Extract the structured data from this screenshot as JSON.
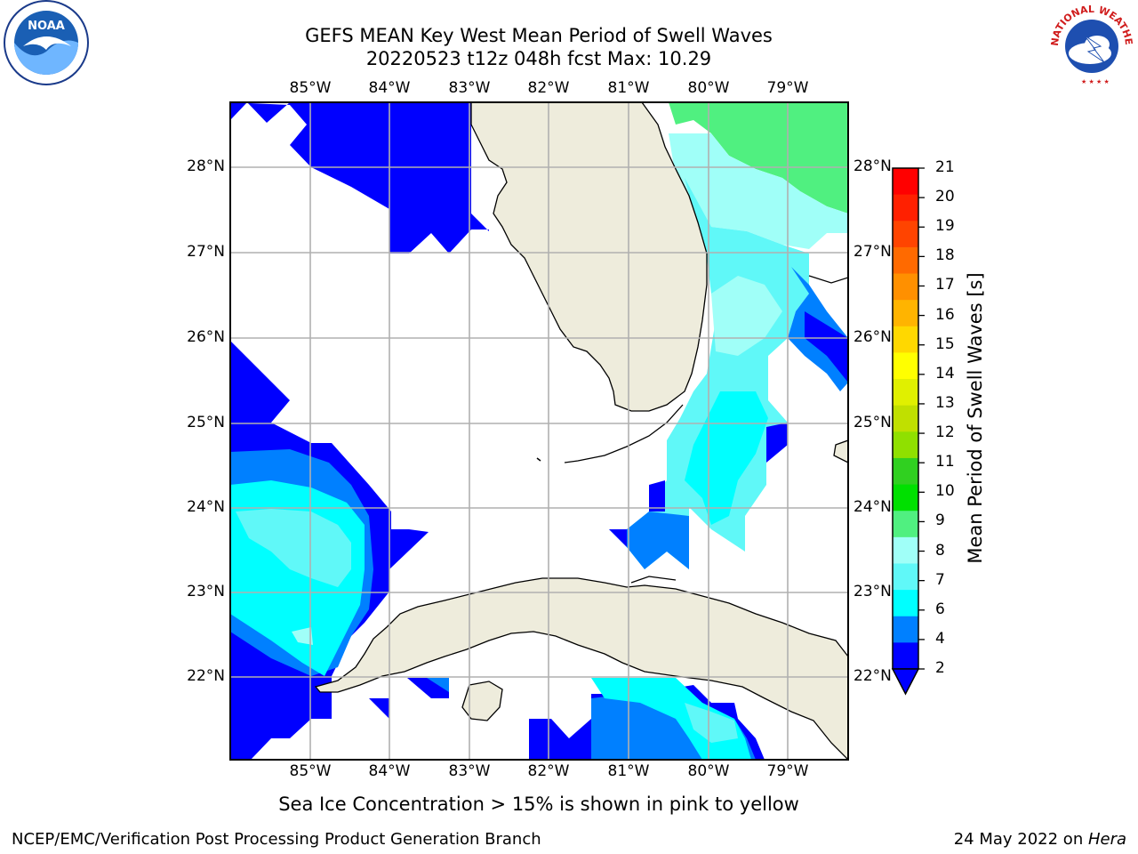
{
  "title_line1": "GEFS MEAN Key West Mean Period of Swell Waves",
  "title_line2": "20220523 t12z 048h fcst   Max: 10.29",
  "lon_labels": [
    "85°W",
    "84°W",
    "83°W",
    "82°W",
    "81°W",
    "80°W",
    "79°W"
  ],
  "lat_labels": [
    "28°N",
    "27°N",
    "26°N",
    "25°N",
    "24°N",
    "23°N",
    "22°N"
  ],
  "colorbar": {
    "label": "Mean Period of Swell Waves [s]",
    "ticks": [
      "21",
      "20",
      "19",
      "18",
      "17",
      "16",
      "15",
      "14",
      "13",
      "12",
      "11",
      "10",
      "9",
      "8",
      "7",
      "6",
      "4",
      "2"
    ],
    "colors": [
      "#ff0000",
      "#ff2000",
      "#ff4400",
      "#ff6a00",
      "#ff9000",
      "#ffb400",
      "#ffd800",
      "#ffff00",
      "#e0f000",
      "#c0e000",
      "#90e000",
      "#30d020",
      "#00e000",
      "#50f080",
      "#a0fff8",
      "#60f8f8",
      "#00ffff",
      "#0080ff",
      "#0000ff"
    ]
  },
  "legend_palette": {
    "blue": "#0000ff",
    "mid_blue": "#0080ff",
    "cyan": "#00ffff",
    "light_cyan": "#60f8f8",
    "pale_cyan": "#a0fff8",
    "green": "#50f080",
    "land": "#eeecdc"
  },
  "note": "Sea Ice Concentration > 15% is shown in pink to yellow",
  "footer_left": "NCEP/EMC/Verification Post Processing Product Generation Branch",
  "footer_right_prefix": "24 May 2022 on ",
  "footer_right_host": "Hera",
  "logos": {
    "noaa_text": "NOAA",
    "nws_text": "NATIONAL WEATHER SERVICE"
  }
}
